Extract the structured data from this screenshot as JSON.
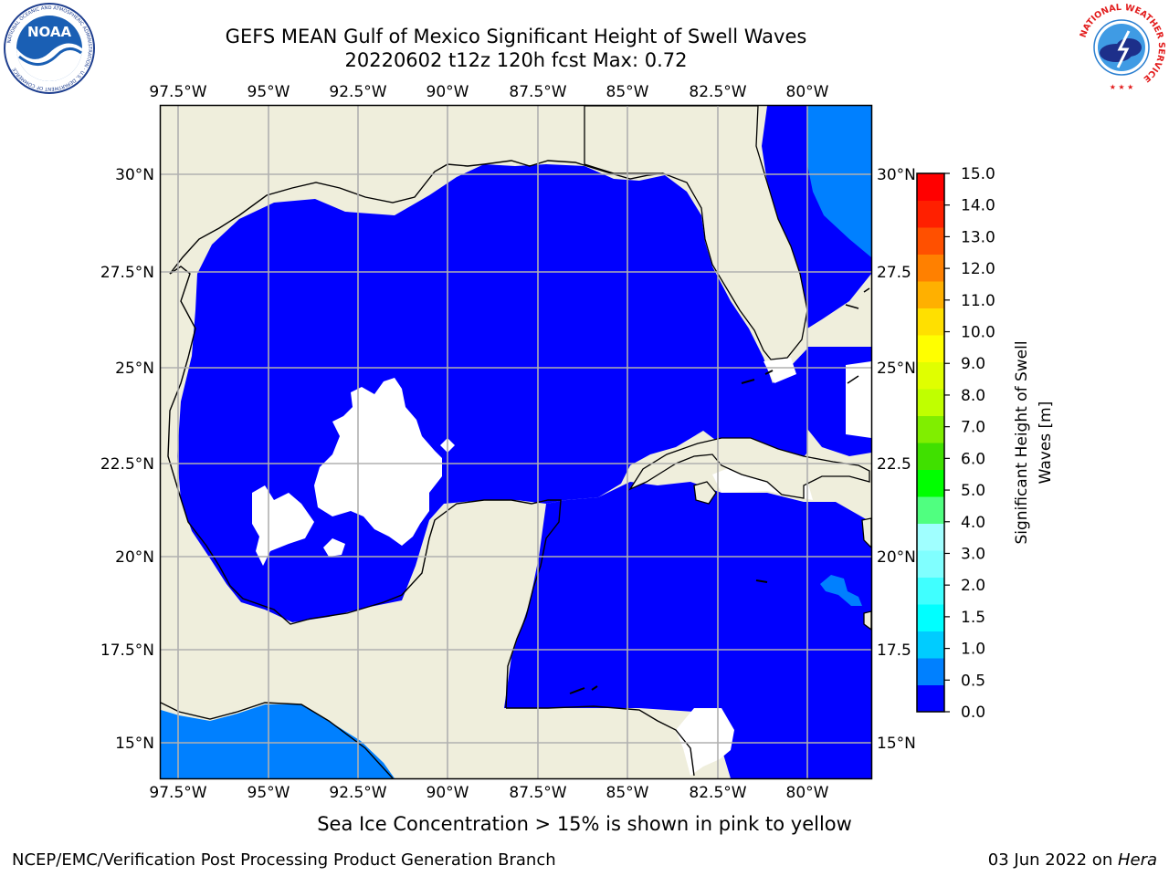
{
  "header": {
    "title_line1": "GEFS MEAN Gulf of Mexico Significant Height of Swell Waves",
    "title_line2": "20220602 t12z 120h fcst   Max: 0.72"
  },
  "logos": {
    "left": "noaa-logo",
    "left_text": "NOAA",
    "left_ring_text": "NATIONAL OCEANIC AND ATMOSPHERIC ADMINISTRATION · U.S. DEPARTMENT OF COMMERCE",
    "right": "national-weather-service-logo",
    "right_ring_text": "NATIONAL WEATHER SERVICE"
  },
  "map": {
    "lon_labels": [
      "97.5°W",
      "95°W",
      "92.5°W",
      "90°W",
      "87.5°W",
      "85°W",
      "82.5°W",
      "80°W"
    ],
    "lat_labels_left": [
      "30°N",
      "27.5°N",
      "25°N",
      "22.5°N",
      "20°N",
      "17.5°N",
      "15°N"
    ],
    "lat_labels_right": [
      "30°N",
      "27.5",
      "25°N",
      "22.5",
      "20°N",
      "17.5",
      "15°N"
    ],
    "colors": {
      "land": "#efeedc",
      "water_0_0.5": "#0000ff",
      "water_0.5_1.0": "#0080ff",
      "no_data": "#ffffff",
      "gridline": "#b0b0b0",
      "coastline": "#000000"
    }
  },
  "colorbar": {
    "label_line1": "Significant Height of Swell",
    "label_line2": "Waves [m]",
    "ticks": [
      "15.0",
      "14.0",
      "13.0",
      "12.0",
      "11.0",
      "10.0",
      "9.0",
      "8.0",
      "7.0",
      "6.0",
      "5.0",
      "4.0",
      "3.0",
      "2.0",
      "1.5",
      "1.0",
      "0.5",
      "0.0"
    ],
    "colors_bottom_to_top": [
      "#0000ff",
      "#0080ff",
      "#00ccff",
      "#00ffff",
      "#40ffff",
      "#80ffff",
      "#a0ffff",
      "#50ff80",
      "#00ff00",
      "#40e000",
      "#80ee00",
      "#c0ff00",
      "#e0ff00",
      "#ffff00",
      "#ffe000",
      "#ffb000",
      "#ff8000",
      "#ff5000",
      "#ff2000",
      "#ff0000"
    ]
  },
  "footer": {
    "ice_note": "Sea Ice Concentration > 15% is shown in pink to yellow",
    "credit": "NCEP/EMC/Verification Post Processing Product Generation Branch",
    "date": "03 Jun 2022 on ",
    "host": "Hera"
  }
}
